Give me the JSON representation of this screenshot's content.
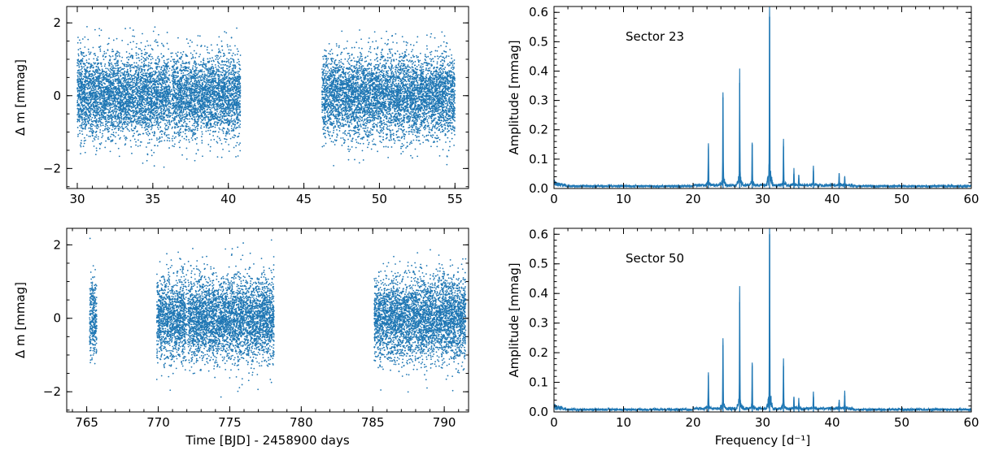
{
  "chart_data": [
    {
      "id": "lc_s23",
      "type": "scatter",
      "ylabel": "Δ m [mmag]",
      "xlabel": "",
      "xlim": [
        29.3,
        55.9
      ],
      "ylim": [
        -2.55,
        2.45
      ],
      "xticks": [
        30,
        35,
        40,
        45,
        50,
        55
      ],
      "yticks": [
        -2,
        0,
        2
      ],
      "ytick_labels": [
        "−2",
        "0",
        "2"
      ],
      "color": "#1f77b4",
      "segments": [
        {
          "x_start": 30.0,
          "x_end": 40.8,
          "gap_dip_at": 36.2
        },
        {
          "x_start": 46.2,
          "x_end": 55.0
        }
      ],
      "y_center": 0.0,
      "y_spread_typical": 1.3,
      "y_extreme": [
        -2.1,
        1.9
      ]
    },
    {
      "id": "ft_s23",
      "type": "line",
      "annotation": "Sector 23",
      "ylabel": "Amplitude [mmag]",
      "xlabel": "",
      "xlim": [
        0,
        60
      ],
      "ylim": [
        0,
        0.62
      ],
      "xticks": [
        0,
        10,
        20,
        30,
        40,
        50,
        60
      ],
      "yticks": [
        0.0,
        0.1,
        0.2,
        0.3,
        0.4,
        0.5,
        0.6
      ],
      "ytick_labels": [
        "0.0",
        "0.1",
        "0.2",
        "0.3",
        "0.4",
        "0.5",
        "0.6"
      ],
      "color": "#1f77b4",
      "peaks": [
        {
          "x": 22.2,
          "y": 0.135
        },
        {
          "x": 24.3,
          "y": 0.31
        },
        {
          "x": 26.7,
          "y": 0.36
        },
        {
          "x": 28.5,
          "y": 0.15
        },
        {
          "x": 31.0,
          "y": 0.585
        },
        {
          "x": 33.0,
          "y": 0.143
        },
        {
          "x": 34.5,
          "y": 0.05
        },
        {
          "x": 35.2,
          "y": 0.035
        },
        {
          "x": 37.3,
          "y": 0.06
        },
        {
          "x": 41.0,
          "y": 0.04
        },
        {
          "x": 41.8,
          "y": 0.03
        }
      ]
    },
    {
      "id": "lc_s50",
      "type": "scatter",
      "ylabel": "Δ m [mmag]",
      "xlabel": "Time [BJD] - 2458900 days",
      "xlim": [
        763.6,
        791.7
      ],
      "ylim": [
        -2.55,
        2.45
      ],
      "xticks": [
        765,
        770,
        775,
        780,
        785,
        790
      ],
      "yticks": [
        -2,
        0,
        2
      ],
      "ytick_labels": [
        "−2",
        "0",
        "2"
      ],
      "color": "#1f77b4",
      "segments": [
        {
          "x_start": 765.2,
          "x_end": 765.7
        },
        {
          "x_start": 769.9,
          "x_end": 778.1,
          "gap_dip_at": 772.0
        },
        {
          "x_start": 785.1,
          "x_end": 791.5
        }
      ],
      "y_center": 0.0,
      "y_spread_typical": 1.3,
      "y_extreme": [
        -2.2,
        2.2
      ]
    },
    {
      "id": "ft_s50",
      "type": "line",
      "annotation": "Sector 50",
      "ylabel": "Amplitude [mmag]",
      "xlabel": "Frequency [d⁻¹]",
      "xlim": [
        0,
        60
      ],
      "ylim": [
        0,
        0.62
      ],
      "xticks": [
        0,
        10,
        20,
        30,
        40,
        50,
        60
      ],
      "yticks": [
        0.0,
        0.1,
        0.2,
        0.3,
        0.4,
        0.5,
        0.6
      ],
      "ytick_labels": [
        "0.0",
        "0.1",
        "0.2",
        "0.3",
        "0.4",
        "0.5",
        "0.6"
      ],
      "color": "#1f77b4",
      "peaks": [
        {
          "x": 22.2,
          "y": 0.123
        },
        {
          "x": 24.3,
          "y": 0.225
        },
        {
          "x": 26.7,
          "y": 0.37
        },
        {
          "x": 28.5,
          "y": 0.155
        },
        {
          "x": 31.0,
          "y": 0.6
        },
        {
          "x": 33.0,
          "y": 0.155
        },
        {
          "x": 34.5,
          "y": 0.04
        },
        {
          "x": 35.2,
          "y": 0.03
        },
        {
          "x": 37.3,
          "y": 0.05
        },
        {
          "x": 41.0,
          "y": 0.03
        },
        {
          "x": 41.8,
          "y": 0.055
        }
      ]
    }
  ]
}
